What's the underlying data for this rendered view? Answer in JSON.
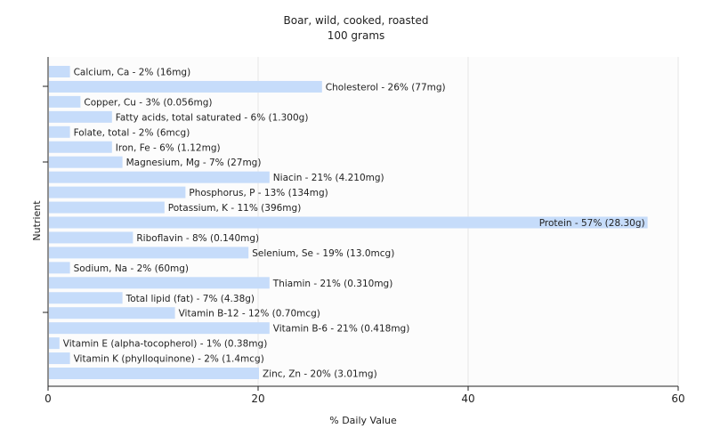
{
  "chart_data": {
    "type": "bar",
    "orientation": "horizontal",
    "title": "Boar, wild, cooked, roasted",
    "subtitle": "100 grams",
    "xlabel": "% Daily Value",
    "ylabel": "Nutrient",
    "xlim": [
      0,
      60
    ],
    "xticks": [
      "0",
      "20",
      "40",
      "60"
    ],
    "grid": true,
    "bar_color": "#c6dcfa",
    "categories": [
      "Calcium, Ca",
      "Cholesterol",
      "Copper, Cu",
      "Fatty acids, total saturated",
      "Folate, total",
      "Iron, Fe",
      "Magnesium, Mg",
      "Niacin",
      "Phosphorus, P",
      "Potassium, K",
      "Protein",
      "Riboflavin",
      "Selenium, Se",
      "Sodium, Na",
      "Thiamin",
      "Total lipid (fat)",
      "Vitamin B-12",
      "Vitamin B-6",
      "Vitamin E (alpha-tocopherol)",
      "Vitamin K (phylloquinone)",
      "Zinc, Zn"
    ],
    "values": [
      2,
      26,
      3,
      6,
      2,
      6,
      7,
      21,
      13,
      11,
      57,
      8,
      19,
      2,
      21,
      7,
      12,
      21,
      1,
      2,
      20
    ],
    "labels": [
      "Calcium, Ca - 2% (16mg)",
      "Cholesterol - 26% (77mg)",
      "Copper, Cu - 3% (0.056mg)",
      "Fatty acids, total saturated - 6% (1.300g)",
      "Folate, total - 2% (6mcg)",
      "Iron, Fe - 6% (1.12mg)",
      "Magnesium, Mg - 7% (27mg)",
      "Niacin - 21% (4.210mg)",
      "Phosphorus, P - 13% (134mg)",
      "Potassium, K - 11% (396mg)",
      "Protein - 57% (28.30g)",
      "Riboflavin - 8% (0.140mg)",
      "Selenium, Se - 19% (13.0mcg)",
      "Sodium, Na - 2% (60mg)",
      "Thiamin - 21% (0.310mg)",
      "Total lipid (fat) - 7% (4.38g)",
      "Vitamin B-12 - 12% (0.70mcg)",
      "Vitamin B-6 - 21% (0.418mg)",
      "Vitamin E (alpha-tocopherol) - 1% (0.38mg)",
      "Vitamin K (phylloquinone) - 2% (1.4mcg)",
      "Zinc, Zn - 20% (3.01mg)"
    ]
  }
}
